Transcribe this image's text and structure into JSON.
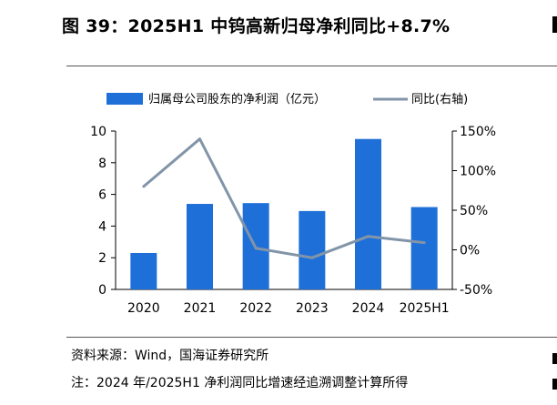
{
  "header": {
    "title": "图 39：2025H1 中钨高新归母净利同比+8.7%"
  },
  "footer": {
    "source": "资料来源：Wind，国海证券研究所",
    "note": "注：2024 年/2025H1 净利润同比增速经追溯调整计算所得"
  },
  "colors": {
    "bar": "#1f6fd9",
    "line": "#8295a8"
  },
  "chart_data": {
    "type": "bar",
    "categories": [
      "2020",
      "2021",
      "2022",
      "2023",
      "2024",
      "2025H1"
    ],
    "series": [
      {
        "name": "归属母公司股东的净利润（亿元）",
        "type": "bar",
        "axis": "left",
        "values": [
          2.3,
          5.4,
          5.45,
          4.95,
          9.5,
          5.2
        ]
      },
      {
        "name": "同比(右轴)",
        "type": "line",
        "axis": "right",
        "values": [
          80,
          140,
          2,
          -10,
          17,
          9
        ]
      }
    ],
    "y_left": {
      "lim": [
        0,
        10
      ],
      "ticks": [
        "0",
        "2",
        "4",
        "6",
        "8",
        "10"
      ]
    },
    "y_right": {
      "lim": [
        -50,
        150
      ],
      "ticks": [
        "-50%",
        "0%",
        "50%",
        "100%",
        "150%"
      ]
    },
    "legend_position": "top",
    "grid": false
  }
}
